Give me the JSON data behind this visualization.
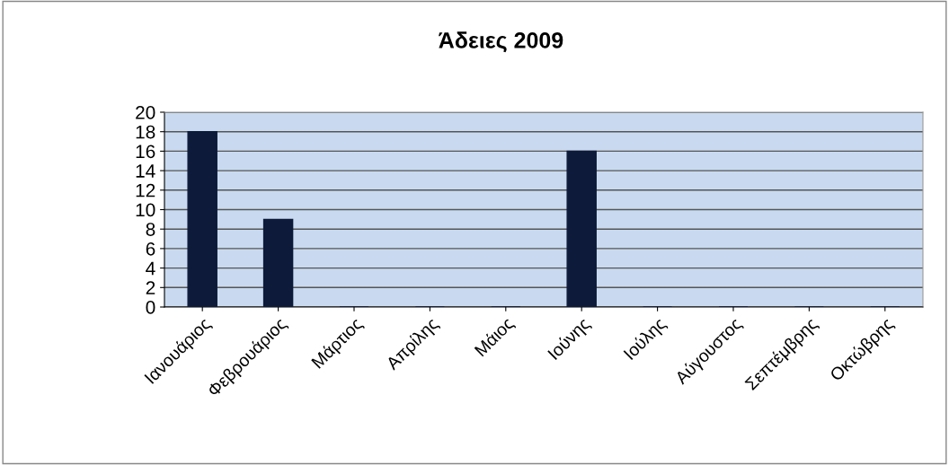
{
  "chart_data": {
    "type": "bar",
    "title": "Άδειες 2009",
    "categories": [
      "Ιανουάριος",
      "Φεβρουάριος",
      "Μάρτιος",
      "Απρίλης",
      "Μάιος",
      "Ιούνης",
      "Ιούλης",
      "Αύγουστος",
      "Σεπτέμβρης",
      "Οκτώβρης"
    ],
    "values": [
      18,
      9,
      0,
      0,
      0,
      16,
      0,
      0,
      0,
      0
    ],
    "color": "#0d1a3a",
    "ylim": [
      0,
      20
    ],
    "yticks": [
      0,
      2,
      4,
      6,
      8,
      10,
      12,
      14,
      16,
      18,
      20
    ],
    "grid": "y"
  }
}
